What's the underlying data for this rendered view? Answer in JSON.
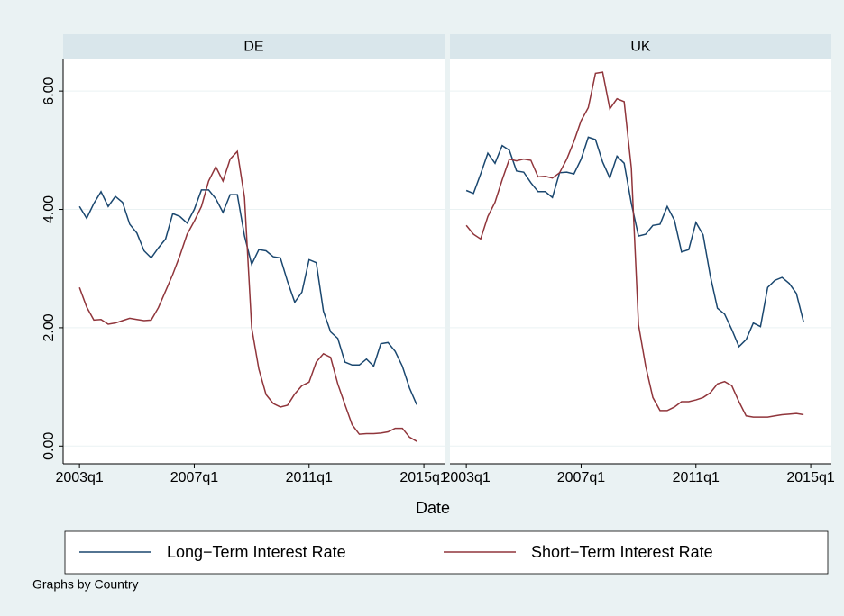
{
  "chart_data": {
    "type": "line",
    "x_label": "Date",
    "note": "Graphs by Country",
    "xlim": [
      2002.43,
      2015.72
    ],
    "xticks": [
      {
        "value": 2003,
        "label": "2003q1"
      },
      {
        "value": 2007,
        "label": "2007q1"
      },
      {
        "value": 2011,
        "label": "2011q1"
      },
      {
        "value": 2015,
        "label": "2015q1"
      }
    ],
    "ylim": [
      -0.3,
      6.55
    ],
    "yticks": [
      {
        "value": 0,
        "label": "0.00"
      },
      {
        "value": 2,
        "label": "2.00"
      },
      {
        "value": 4,
        "label": "4.00"
      },
      {
        "value": 6,
        "label": "6.00"
      }
    ],
    "grid": true,
    "x": [
      2003,
      2003.25,
      2003.5,
      2003.75,
      2004,
      2004.25,
      2004.5,
      2004.75,
      2005,
      2005.25,
      2005.5,
      2005.75,
      2006,
      2006.25,
      2006.5,
      2006.75,
      2007,
      2007.25,
      2007.5,
      2007.75,
      2008,
      2008.25,
      2008.5,
      2008.75,
      2009,
      2009.25,
      2009.5,
      2009.75,
      2010,
      2010.25,
      2010.5,
      2010.75,
      2011,
      2011.25,
      2011.5,
      2011.75,
      2012,
      2012.25,
      2012.5,
      2012.75,
      2013,
      2013.25,
      2013.5,
      2013.75,
      2014,
      2014.25,
      2014.5,
      2014.75
    ],
    "series": [
      {
        "name": "Long−Term Interest Rate",
        "color": "#1a476f"
      },
      {
        "name": "Short−Term Interest Rate",
        "color": "#90353b"
      }
    ],
    "panels": [
      {
        "title": "DE",
        "series": [
          {
            "values": [
              4.05,
              3.85,
              4.1,
              4.3,
              4.05,
              4.22,
              4.12,
              3.75,
              3.6,
              3.3,
              3.18,
              3.35,
              3.5,
              3.93,
              3.88,
              3.77,
              4.0,
              4.33,
              4.33,
              4.18,
              3.95,
              4.25,
              4.25,
              3.55,
              3.07,
              3.32,
              3.3,
              3.2,
              3.18,
              2.78,
              2.43,
              2.6,
              3.15,
              3.1,
              2.28,
              1.93,
              1.82,
              1.42,
              1.37,
              1.37,
              1.47,
              1.35,
              1.73,
              1.75,
              1.6,
              1.35,
              0.98,
              0.7
            ]
          },
          {
            "values": [
              2.68,
              2.35,
              2.13,
              2.14,
              2.06,
              2.08,
              2.12,
              2.16,
              2.14,
              2.12,
              2.13,
              2.34,
              2.62,
              2.9,
              3.22,
              3.58,
              3.8,
              4.05,
              4.48,
              4.72,
              4.48,
              4.85,
              4.98,
              4.2,
              2.0,
              1.3,
              0.87,
              0.72,
              0.66,
              0.69,
              0.88,
              1.02,
              1.08,
              1.42,
              1.56,
              1.5,
              1.05,
              0.7,
              0.36,
              0.2,
              0.21,
              0.21,
              0.22,
              0.24,
              0.3,
              0.3,
              0.15,
              0.08
            ]
          }
        ]
      },
      {
        "title": "UK",
        "series": [
          {
            "values": [
              4.32,
              4.27,
              4.6,
              4.95,
              4.78,
              5.08,
              5.0,
              4.65,
              4.63,
              4.45,
              4.3,
              4.3,
              4.2,
              4.62,
              4.63,
              4.6,
              4.85,
              5.22,
              5.18,
              4.8,
              4.53,
              4.9,
              4.78,
              4.1,
              3.55,
              3.58,
              3.73,
              3.75,
              4.05,
              3.82,
              3.28,
              3.32,
              3.78,
              3.57,
              2.88,
              2.33,
              2.23,
              1.97,
              1.68,
              1.8,
              2.08,
              2.02,
              2.68,
              2.8,
              2.85,
              2.75,
              2.58,
              2.1
            ]
          },
          {
            "values": [
              3.73,
              3.58,
              3.5,
              3.88,
              4.12,
              4.5,
              4.85,
              4.82,
              4.85,
              4.83,
              4.55,
              4.56,
              4.53,
              4.62,
              4.85,
              5.15,
              5.5,
              5.72,
              6.3,
              6.32,
              5.7,
              5.87,
              5.82,
              4.7,
              2.05,
              1.35,
              0.82,
              0.6,
              0.6,
              0.66,
              0.75,
              0.75,
              0.78,
              0.82,
              0.9,
              1.05,
              1.09,
              1.02,
              0.75,
              0.51,
              0.49,
              0.49,
              0.49,
              0.51,
              0.53,
              0.54,
              0.55,
              0.53
            ]
          }
        ]
      }
    ]
  }
}
